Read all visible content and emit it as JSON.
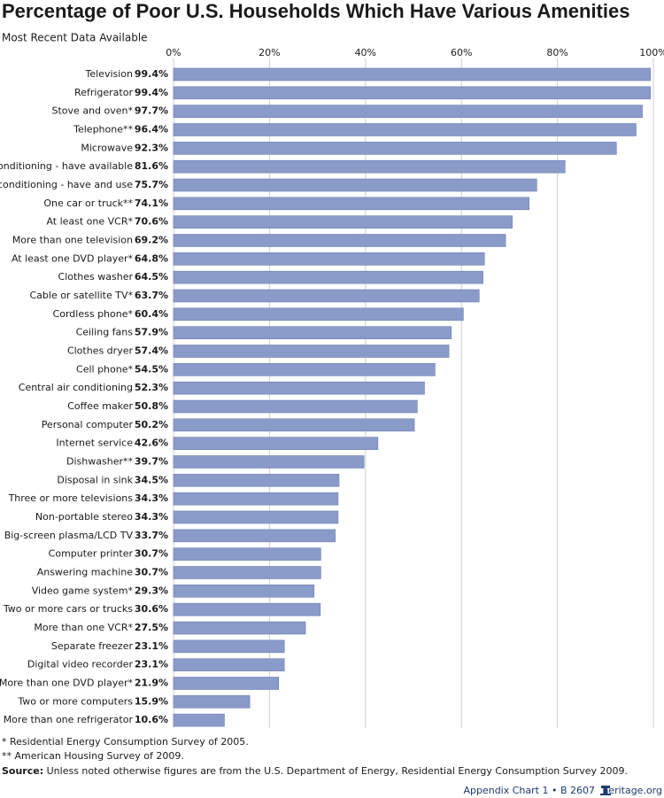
{
  "chart_data": {
    "type": "bar",
    "orientation": "horizontal",
    "title": "Percentage of Poor U.S. Households Which Have Various Amenities",
    "subtitle": "Most Recent Data Available",
    "categories": [
      "Television",
      "Refrigerator",
      "Stove and oven*",
      "Telephone**",
      "Microwave",
      "Air conditioning - have available",
      "Air conditioning - have and use",
      "One car or truck**",
      "At least one VCR*",
      "More than one television",
      "At least one DVD player*",
      "Clothes washer",
      "Cable or satellite TV*",
      "Cordless phone*",
      "Ceiling fans",
      "Clothes dryer",
      "Cell phone*",
      "Central air conditioning",
      "Coffee maker",
      "Personal computer",
      "Internet service",
      "Dishwasher**",
      "Disposal in sink",
      "Three or more televisions",
      "Non-portable stereo",
      "Big-screen plasma/LCD TV",
      "Computer printer",
      "Answering machine",
      "Video game system*",
      "Two or more cars or trucks",
      "More than one VCR*",
      "Separate freezer",
      "Digital video recorder",
      "More than one DVD player*",
      "Two or more computers",
      "More than one refrigerator"
    ],
    "values": [
      99.4,
      99.4,
      97.7,
      96.4,
      92.3,
      81.6,
      75.7,
      74.1,
      70.6,
      69.2,
      64.8,
      64.5,
      63.7,
      60.4,
      57.9,
      57.4,
      54.5,
      52.3,
      50.8,
      50.2,
      42.6,
      39.7,
      34.5,
      34.3,
      34.3,
      33.7,
      30.7,
      30.7,
      29.3,
      30.6,
      27.5,
      23.1,
      23.1,
      21.9,
      15.9,
      10.6
    ],
    "value_labels": [
      "99.4%",
      "99.4%",
      "97.7%",
      "96.4%",
      "92.3%",
      "81.6%",
      "75.7%",
      "74.1%",
      "70.6%",
      "69.2%",
      "64.8%",
      "64.5%",
      "63.7%",
      "60.4%",
      "57.9%",
      "57.4%",
      "54.5%",
      "52.3%",
      "50.8%",
      "50.2%",
      "42.6%",
      "39.7%",
      "34.5%",
      "34.3%",
      "34.3%",
      "33.7%",
      "30.7%",
      "30.7%",
      "29.3%",
      "30.6%",
      "27.5%",
      "23.1%",
      "23.1%",
      "21.9%",
      "15.9%",
      "10.6%"
    ],
    "color": "#8a9bc9",
    "xlim": [
      0,
      100
    ],
    "xticks": [
      {
        "value": 0,
        "label": "0%"
      },
      {
        "value": 20,
        "label": "20%"
      },
      {
        "value": 40,
        "label": "40%"
      },
      {
        "value": 60,
        "label": "60%"
      },
      {
        "value": 80,
        "label": "80%"
      },
      {
        "value": 100,
        "label": "100%"
      }
    ],
    "grid": true,
    "notes": [
      "* Residential Energy Consumption Survey of 2005.",
      "** American Housing Survey of 2009."
    ],
    "source_label": "Source:",
    "source_text": "Unless noted otherwise figures are from the U.S. Department of Energy, Residential Energy Consumption Survey 2009.",
    "footer": "Appendix Chart 1 • B 2607",
    "footer_site": "heritage.org"
  }
}
